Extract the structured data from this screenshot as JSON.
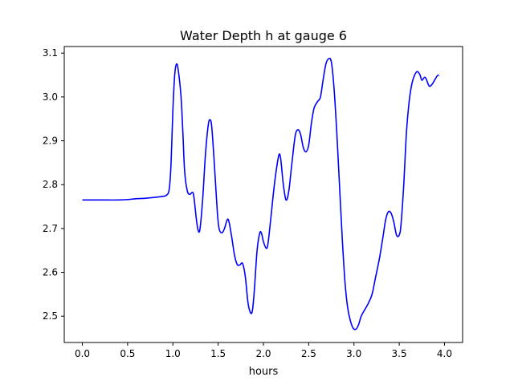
{
  "chart_data": {
    "type": "line",
    "title": "Water Depth h at gauge 6",
    "xlabel": "hours",
    "ylabel": "",
    "xlim": [
      -0.2,
      4.2
    ],
    "ylim": [
      2.44,
      3.115
    ],
    "xticks": [
      "0.0",
      "0.5",
      "1.0",
      "1.5",
      "2.0",
      "2.5",
      "3.0",
      "3.5",
      "4.0"
    ],
    "yticks": [
      "2.5",
      "2.6",
      "2.7",
      "2.8",
      "2.9",
      "3.0",
      "3.1"
    ],
    "grid": false,
    "series": [
      {
        "color": "#0000ff",
        "points": [
          [
            0.0,
            2.765
          ],
          [
            0.2,
            2.765
          ],
          [
            0.4,
            2.765
          ],
          [
            0.5,
            2.766
          ],
          [
            0.6,
            2.768
          ],
          [
            0.7,
            2.769
          ],
          [
            0.8,
            2.771
          ],
          [
            0.88,
            2.773
          ],
          [
            0.93,
            2.776
          ],
          [
            0.96,
            2.79
          ],
          [
            0.98,
            2.85
          ],
          [
            1.0,
            2.97
          ],
          [
            1.02,
            3.05
          ],
          [
            1.04,
            3.075
          ],
          [
            1.06,
            3.06
          ],
          [
            1.09,
            3.0
          ],
          [
            1.11,
            2.92
          ],
          [
            1.13,
            2.83
          ],
          [
            1.16,
            2.785
          ],
          [
            1.19,
            2.778
          ],
          [
            1.21,
            2.782
          ],
          [
            1.23,
            2.775
          ],
          [
            1.26,
            2.72
          ],
          [
            1.28,
            2.695
          ],
          [
            1.3,
            2.7
          ],
          [
            1.33,
            2.77
          ],
          [
            1.36,
            2.87
          ],
          [
            1.39,
            2.935
          ],
          [
            1.41,
            2.948
          ],
          [
            1.43,
            2.93
          ],
          [
            1.46,
            2.84
          ],
          [
            1.49,
            2.74
          ],
          [
            1.51,
            2.7
          ],
          [
            1.54,
            2.69
          ],
          [
            1.57,
            2.7
          ],
          [
            1.6,
            2.72
          ],
          [
            1.62,
            2.715
          ],
          [
            1.65,
            2.68
          ],
          [
            1.68,
            2.64
          ],
          [
            1.71,
            2.618
          ],
          [
            1.74,
            2.617
          ],
          [
            1.77,
            2.62
          ],
          [
            1.8,
            2.59
          ],
          [
            1.83,
            2.53
          ],
          [
            1.86,
            2.507
          ],
          [
            1.88,
            2.515
          ],
          [
            1.9,
            2.56
          ],
          [
            1.93,
            2.65
          ],
          [
            1.96,
            2.69
          ],
          [
            1.98,
            2.688
          ],
          [
            2.0,
            2.67
          ],
          [
            2.03,
            2.655
          ],
          [
            2.05,
            2.665
          ],
          [
            2.08,
            2.72
          ],
          [
            2.11,
            2.78
          ],
          [
            2.14,
            2.83
          ],
          [
            2.17,
            2.867
          ],
          [
            2.19,
            2.86
          ],
          [
            2.22,
            2.8
          ],
          [
            2.25,
            2.765
          ],
          [
            2.28,
            2.785
          ],
          [
            2.31,
            2.84
          ],
          [
            2.35,
            2.91
          ],
          [
            2.38,
            2.925
          ],
          [
            2.41,
            2.915
          ],
          [
            2.44,
            2.885
          ],
          [
            2.47,
            2.875
          ],
          [
            2.5,
            2.89
          ],
          [
            2.53,
            2.94
          ],
          [
            2.56,
            2.975
          ],
          [
            2.6,
            2.99
          ],
          [
            2.63,
            3.0
          ],
          [
            2.66,
            3.04
          ],
          [
            2.69,
            3.075
          ],
          [
            2.72,
            3.087
          ],
          [
            2.75,
            3.08
          ],
          [
            2.78,
            3.02
          ],
          [
            2.81,
            2.92
          ],
          [
            2.84,
            2.8
          ],
          [
            2.87,
            2.68
          ],
          [
            2.9,
            2.58
          ],
          [
            2.93,
            2.52
          ],
          [
            2.96,
            2.49
          ],
          [
            2.99,
            2.473
          ],
          [
            3.02,
            2.47
          ],
          [
            3.05,
            2.48
          ],
          [
            3.08,
            2.5
          ],
          [
            3.12,
            2.515
          ],
          [
            3.16,
            2.53
          ],
          [
            3.2,
            2.55
          ],
          [
            3.24,
            2.59
          ],
          [
            3.28,
            2.63
          ],
          [
            3.32,
            2.68
          ],
          [
            3.35,
            2.72
          ],
          [
            3.38,
            2.738
          ],
          [
            3.41,
            2.735
          ],
          [
            3.44,
            2.715
          ],
          [
            3.47,
            2.685
          ],
          [
            3.5,
            2.685
          ],
          [
            3.52,
            2.71
          ],
          [
            3.55,
            2.8
          ],
          [
            3.58,
            2.92
          ],
          [
            3.61,
            2.99
          ],
          [
            3.64,
            3.03
          ],
          [
            3.67,
            3.05
          ],
          [
            3.7,
            3.058
          ],
          [
            3.73,
            3.05
          ],
          [
            3.75,
            3.038
          ],
          [
            3.78,
            3.045
          ],
          [
            3.8,
            3.04
          ],
          [
            3.83,
            3.025
          ],
          [
            3.86,
            3.028
          ],
          [
            3.89,
            3.038
          ],
          [
            3.92,
            3.048
          ],
          [
            3.94,
            3.05
          ]
        ]
      }
    ]
  }
}
